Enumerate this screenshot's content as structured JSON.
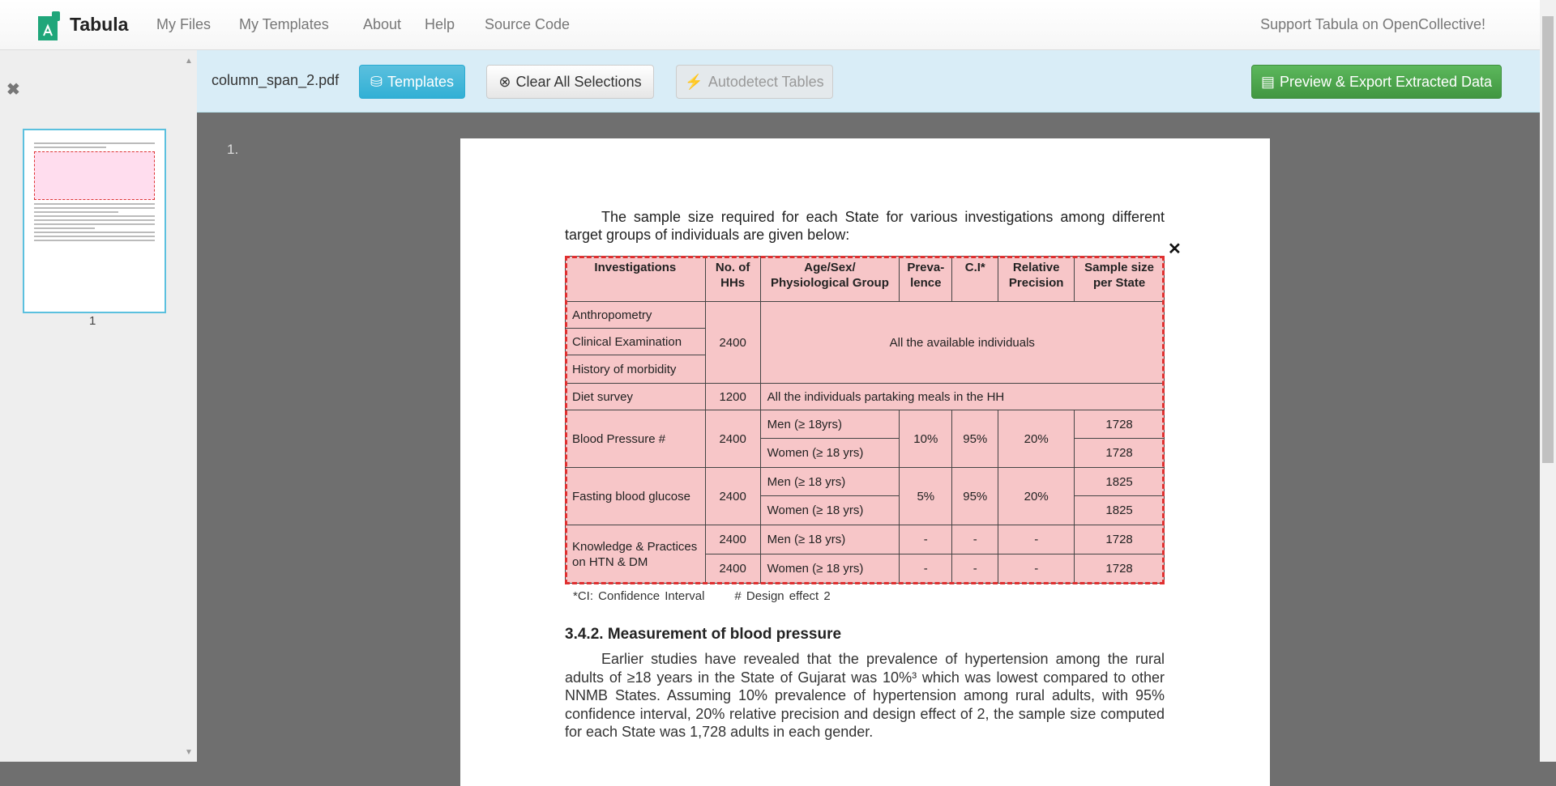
{
  "nav": {
    "brand": "Tabula",
    "links": [
      "My Files",
      "My Templates",
      "About",
      "Help",
      "Source Code"
    ],
    "support": "Support Tabula on OpenCollective!"
  },
  "sidebar": {
    "thumb_label": "1"
  },
  "toolbar": {
    "filename": "column_span_2.pdf",
    "templates": "Templates",
    "clear": "Clear All Selections",
    "autodetect": "Autodetect Tables",
    "preview": "Preview & Export Extracted Data"
  },
  "colors": {
    "accent": "#5bc0de",
    "success": "#5cb85c",
    "selection": "#e03030"
  },
  "viewer": {
    "page_number": "1."
  },
  "doc": {
    "intro": "The sample size required for each State for various investigations among different target groups of individuals are given below:",
    "headers": [
      "Investigations",
      "No. of HHs",
      "Age/Sex/ Physiological Group",
      "Preva- lence",
      "C.I*",
      "Relative Precision",
      "Sample size per State"
    ],
    "r": {
      "anthro": "Anthropometry",
      "clinical": "Clinical Examination",
      "history": "History of morbidity",
      "hh2400": "2400",
      "all": "All the available individuals",
      "diet": "Diet survey",
      "hh1200": "1200",
      "dietall": "All the individuals partaking meals in the HH",
      "bp": "Blood Pressure #",
      "men18": "Men (≥ 18yrs)",
      "women": "Women (≥ 18 yrs)",
      "men": "Men (≥ 18 yrs)",
      "p10": "10%",
      "ci95": "95%",
      "rp20": "20%",
      "s1728": "1728",
      "fbg": "Fasting blood glucose",
      "p5": "5%",
      "s1825": "1825",
      "kp": "Knowledge & Practices on HTN & DM",
      "dash": "-"
    },
    "footnote": "*CI: Confidence Interval      # Design effect 2",
    "heading": "3.4.2. Measurement of blood pressure",
    "paragraph": "Earlier studies have revealed that the prevalence of hypertension among the rural adults of ≥18 years in the State of Gujarat was 10%³ which was lowest compared to other NNMB States. Assuming 10% prevalence of hypertension among rural adults, with 95% confidence interval, 20% relative precision and design effect of 2, the sample size computed for each State was 1,728 adults in each gender."
  }
}
